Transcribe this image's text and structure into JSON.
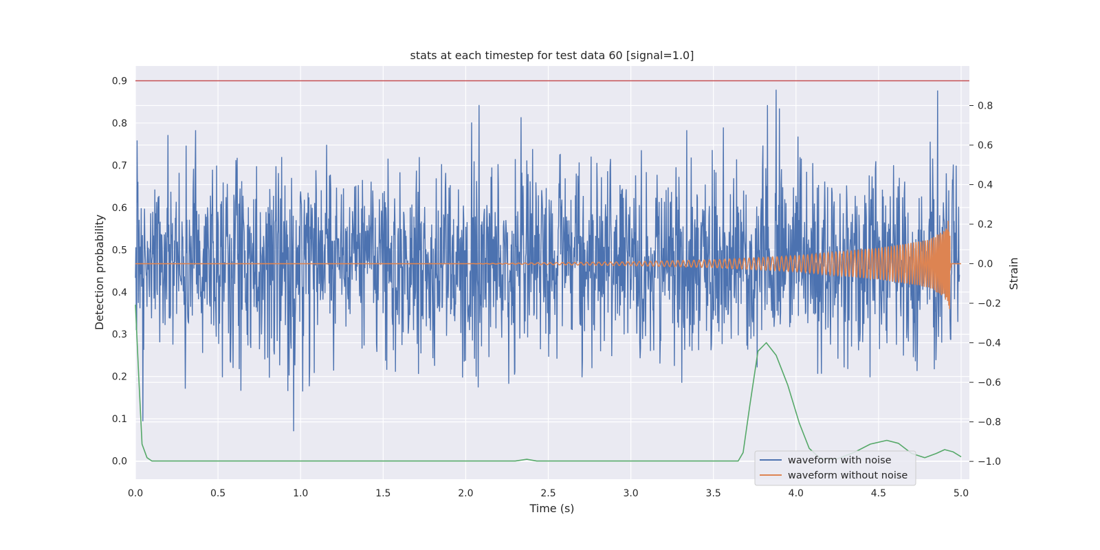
{
  "chart_data": {
    "type": "line",
    "title": "stats at each timestep for test data 60 [signal=1.0]",
    "xlabel": "Time (s)",
    "ylabel": "Detection probability",
    "y2label": "Strain",
    "xlim": [
      0.0,
      5.05
    ],
    "ylim": [
      -0.043,
      0.935
    ],
    "y2lim": [
      -1.09,
      1.0
    ],
    "xticks": [
      "0.0",
      "0.5",
      "1.0",
      "1.5",
      "2.0",
      "2.5",
      "3.0",
      "3.5",
      "4.0",
      "4.5",
      "5.0"
    ],
    "yticks": [
      "0.0",
      "0.1",
      "0.2",
      "0.3",
      "0.4",
      "0.5",
      "0.6",
      "0.7",
      "0.8",
      "0.9"
    ],
    "y2ticks": [
      "−1.0",
      "−0.8",
      "−0.6",
      "−0.4",
      "−0.2",
      "0.0",
      "0.2",
      "0.4",
      "0.6",
      "0.8"
    ],
    "grid": true,
    "legend_position": "lower-right",
    "colors": {
      "background": "#eaeaf2",
      "grid": "#ffffff",
      "noisy": "#4c72b0",
      "clean": "#dd8452",
      "prob": "#55a868",
      "threshold": "#c44e52"
    },
    "threshold": {
      "axis": "left",
      "value": 0.9
    },
    "series": [
      {
        "name": "waveform with noise",
        "axis": "right",
        "note_kind": "noise",
        "visible_range": [
          -1.0,
          0.9
        ]
      },
      {
        "name": "waveform without noise",
        "axis": "right",
        "kind": "chirp",
        "points": [
          [
            0.0,
            0.0
          ],
          [
            1.0,
            0.0
          ],
          [
            2.0,
            0.0
          ],
          [
            3.0,
            0.01
          ],
          [
            3.5,
            0.02
          ],
          [
            4.0,
            0.04
          ],
          [
            4.5,
            0.08
          ],
          [
            4.8,
            0.12
          ],
          [
            4.9,
            0.17
          ],
          [
            4.93,
            0.24
          ],
          [
            4.94,
            -0.22
          ],
          [
            4.95,
            0.0
          ],
          [
            5.0,
            0.0
          ]
        ]
      },
      {
        "name": "",
        "axis": "left",
        "points": [
          [
            0.0,
            0.37
          ],
          [
            0.02,
            0.2
          ],
          [
            0.04,
            0.04
          ],
          [
            0.07,
            0.008
          ],
          [
            0.1,
            0.0
          ],
          [
            2.3,
            0.0
          ],
          [
            2.37,
            0.004
          ],
          [
            2.43,
            0.0
          ],
          [
            3.65,
            0.0
          ],
          [
            3.68,
            0.02
          ],
          [
            3.72,
            0.13
          ],
          [
            3.77,
            0.26
          ],
          [
            3.82,
            0.28
          ],
          [
            3.88,
            0.25
          ],
          [
            3.95,
            0.18
          ],
          [
            4.02,
            0.09
          ],
          [
            4.08,
            0.03
          ],
          [
            4.15,
            0.005
          ],
          [
            4.25,
            0.005
          ],
          [
            4.35,
            0.02
          ],
          [
            4.45,
            0.04
          ],
          [
            4.55,
            0.049
          ],
          [
            4.62,
            0.042
          ],
          [
            4.7,
            0.018
          ],
          [
            4.78,
            0.008
          ],
          [
            4.85,
            0.018
          ],
          [
            4.9,
            0.027
          ],
          [
            4.95,
            0.022
          ],
          [
            5.0,
            0.01
          ]
        ]
      }
    ]
  }
}
